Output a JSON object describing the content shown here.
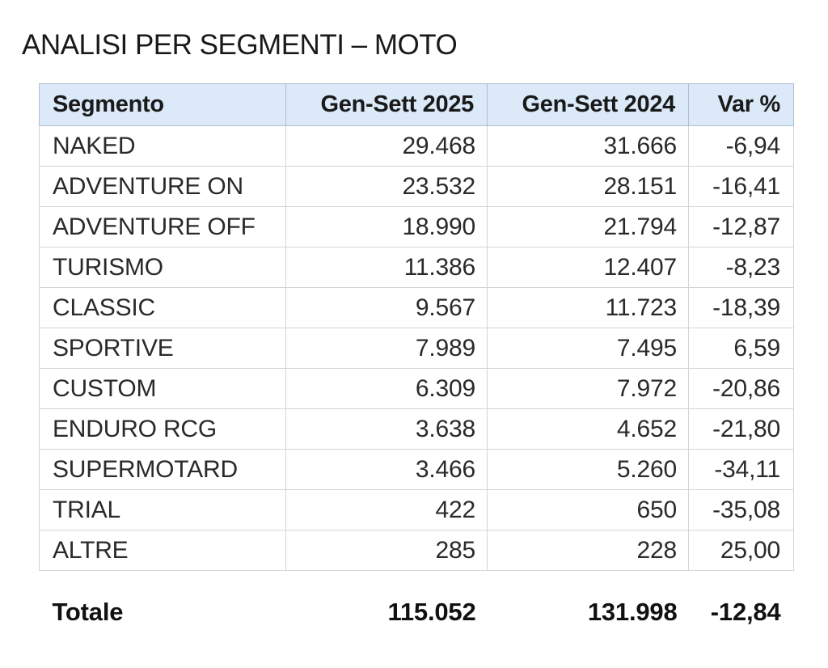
{
  "title": "ANALISI PER SEGMENTI – MOTO",
  "table": {
    "headers": [
      "Segmento",
      "Gen-Sett 2025",
      "Gen-Sett 2024",
      "Var %"
    ],
    "rows": [
      [
        "NAKED",
        "29.468",
        "31.666",
        "-6,94"
      ],
      [
        "ADVENTURE ON",
        "23.532",
        "28.151",
        "-16,41"
      ],
      [
        "ADVENTURE OFF",
        "18.990",
        "21.794",
        "-12,87"
      ],
      [
        "TURISMO",
        "11.386",
        "12.407",
        "-8,23"
      ],
      [
        "CLASSIC",
        "9.567",
        "11.723",
        "-18,39"
      ],
      [
        "SPORTIVE",
        "7.989",
        "7.495",
        "6,59"
      ],
      [
        "CUSTOM",
        "6.309",
        "7.972",
        "-20,86"
      ],
      [
        "ENDURO RCG",
        "3.638",
        "4.652",
        "-21,80"
      ],
      [
        "SUPERMOTARD",
        "3.466",
        "5.260",
        "-34,11"
      ],
      [
        "TRIAL",
        "422",
        "650",
        "-35,08"
      ],
      [
        "ALTRE",
        "285",
        "228",
        "25,00"
      ]
    ],
    "total": [
      "Totale",
      "115.052",
      "131.998",
      "-12,84"
    ]
  }
}
